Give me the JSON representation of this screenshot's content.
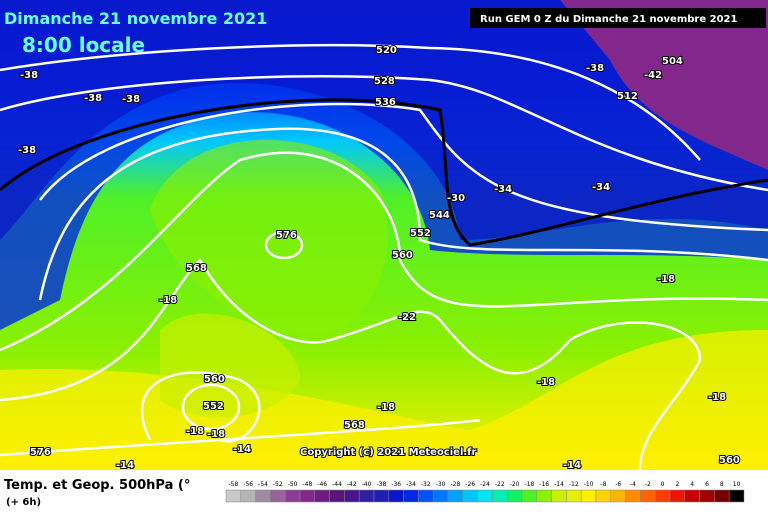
{
  "header": {
    "date": "Dimanche 21 novembre 2021",
    "time": "8:00 locale",
    "run": "Run GEM 0 Z du Dimanche 21 novembre 2021",
    "copyright": "Copyright (c) 2021 Meteociel.fr"
  },
  "map_labels": [
    "-38",
    "-38",
    "-38",
    "-38",
    "520",
    "528",
    "536",
    "-38",
    "-42",
    "504",
    "512",
    "-34",
    "-34",
    "-30",
    "544",
    "552",
    "560",
    "576",
    "568",
    "-18",
    "-22",
    "-18",
    "-18",
    "-18",
    "560",
    "552",
    "-18",
    "-18",
    "-14",
    "-18",
    "568",
    "576",
    "-14",
    "-14",
    "560"
  ],
  "legend": {
    "title": "Temp. et Geop. 500hPa (°",
    "subtitle": "(+ 6h)",
    "scale": [
      -58,
      -56,
      -54,
      -52,
      -50,
      -48,
      -46,
      -44,
      -42,
      -40,
      -38,
      -36,
      -34,
      -32,
      -30,
      -28,
      -26,
      -24,
      -22,
      -20,
      -18,
      -16,
      -14,
      -12,
      -10,
      -8,
      -6,
      -4,
      -2,
      0,
      2,
      4,
      6,
      8,
      10
    ],
    "colors": [
      "#c8c8c8",
      "#b4b4b4",
      "#a08ca0",
      "#96649b",
      "#8c3c96",
      "#82288c",
      "#6e1e82",
      "#5a1478",
      "#46148c",
      "#321ea0",
      "#1e1eb4",
      "#0a14c8",
      "#0028e6",
      "#0050ff",
      "#0078ff",
      "#00a0ff",
      "#00c8ff",
      "#00e6f0",
      "#00f0b4",
      "#14f064",
      "#50f028",
      "#8cf000",
      "#c8f000",
      "#e6f000",
      "#fff000",
      "#ffd200",
      "#ffb400",
      "#ff8c00",
      "#ff6400",
      "#ff3c00",
      "#f01400",
      "#c80000",
      "#a00000",
      "#780000",
      "#000000"
    ]
  }
}
